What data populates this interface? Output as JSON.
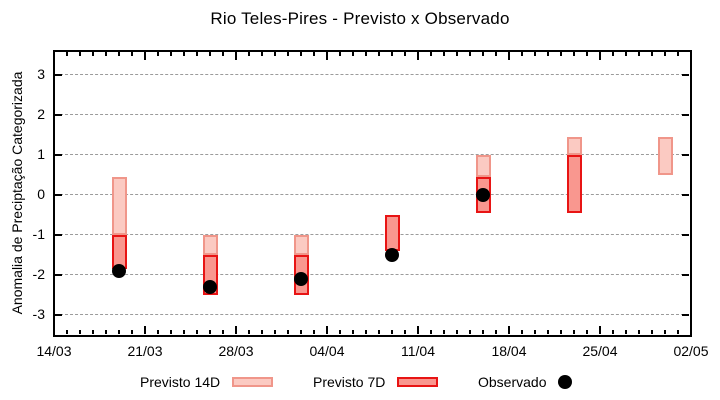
{
  "chart_data": {
    "type": "bar",
    "title": "Rio Teles-Pires - Previsto x Observado",
    "ylabel": "Anomalia de Preciptação Categorizada",
    "ylim": [
      -3.5,
      3.6
    ],
    "yticks": [
      3,
      2,
      1,
      0,
      -1,
      -2,
      -3
    ],
    "grid": "horizontal-dashed",
    "x_axis": {
      "tick_labels": [
        "14/03",
        "21/03",
        "28/03",
        "04/04",
        "11/04",
        "18/04",
        "25/04",
        "02/05"
      ],
      "tick_days": [
        0,
        7,
        14,
        21,
        28,
        35,
        42,
        49
      ],
      "total_days": 49,
      "minor_tick_every_days": 1
    },
    "legend": [
      {
        "label": "Previsto 14D",
        "type": "box"
      },
      {
        "label": "Previsto 7D",
        "type": "box"
      },
      {
        "label": "Observado",
        "type": "dot"
      }
    ],
    "colors": {
      "f14_fill": "#fbcac2",
      "f14_border": "#f0968a",
      "f7_fill": "#f9978f",
      "f7_border": "#e81414",
      "observed": "#000000",
      "grid": "#9b9b9b",
      "axis": "#000000"
    },
    "series": [
      {
        "date": "19/03",
        "day": 5,
        "forecast14d": [
          -1.0,
          0.45
        ],
        "forecast7d": [
          -1.85,
          -1.0
        ],
        "observed": -1.9
      },
      {
        "date": "26/03",
        "day": 12,
        "forecast14d": [
          -1.5,
          -1.0
        ],
        "forecast7d": [
          -2.5,
          -1.5
        ],
        "observed": -2.3
      },
      {
        "date": "02/04",
        "day": 19,
        "forecast14d": [
          -1.5,
          -1.0
        ],
        "forecast7d": [
          -2.5,
          -1.5
        ],
        "observed": -2.1
      },
      {
        "date": "09/04",
        "day": 26,
        "forecast14d": null,
        "forecast7d": [
          -1.4,
          -0.5
        ],
        "observed": -1.5
      },
      {
        "date": "16/04",
        "day": 33,
        "forecast14d": [
          0.45,
          1.0
        ],
        "forecast7d": [
          -0.45,
          0.45
        ],
        "observed": 0.0
      },
      {
        "date": "23/04",
        "day": 40,
        "forecast14d": [
          1.0,
          1.45
        ],
        "forecast7d": [
          -0.45,
          1.0
        ],
        "observed": null
      },
      {
        "date": "30/04",
        "day": 47,
        "forecast14d": [
          0.5,
          1.45
        ],
        "forecast7d": null,
        "observed": null
      }
    ]
  }
}
